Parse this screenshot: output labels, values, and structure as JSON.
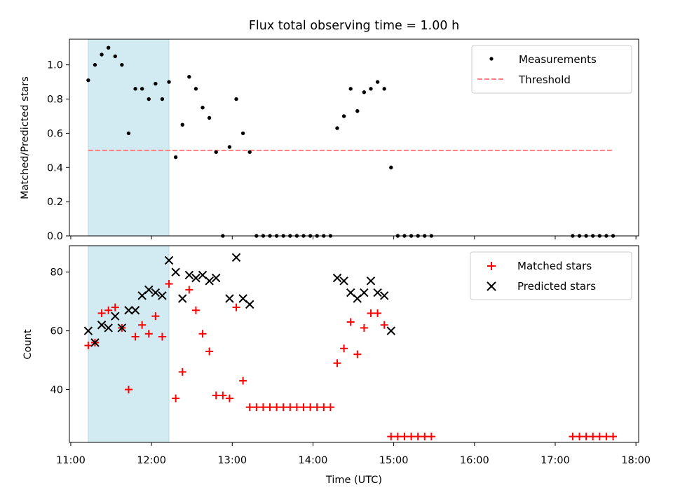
{
  "chart_data": [
    {
      "type": "scatter",
      "title": "Flux total observing time = 1.00 h",
      "xlabel": "",
      "ylabel": "Matched/Predicted stars",
      "ylim": [
        0,
        1.15
      ],
      "yticks": [
        "0.0",
        "0.2",
        "0.4",
        "0.6",
        "0.8",
        "1.0"
      ],
      "highlight_span": [
        "11:13",
        "12:13"
      ],
      "threshold": 0.5,
      "threshold_range": [
        "11:13",
        "17:43"
      ],
      "legend_position": "top-right",
      "series": [
        {
          "name": "Measurements",
          "color": "#000000",
          "marker": "dot",
          "points": [
            [
              "11:13",
              0.91
            ],
            [
              "11:18",
              1.0
            ],
            [
              "11:23",
              1.06
            ],
            [
              "11:28",
              1.1
            ],
            [
              "11:33",
              1.05
            ],
            [
              "11:38",
              1.0
            ],
            [
              "11:43",
              0.6
            ],
            [
              "11:48",
              0.86
            ],
            [
              "11:53",
              0.86
            ],
            [
              "11:58",
              0.8
            ],
            [
              "12:03",
              0.89
            ],
            [
              "12:08",
              0.8
            ],
            [
              "12:13",
              0.9
            ],
            [
              "12:18",
              0.46
            ],
            [
              "12:23",
              0.65
            ],
            [
              "12:28",
              0.93
            ],
            [
              "12:33",
              0.86
            ],
            [
              "12:38",
              0.75
            ],
            [
              "12:43",
              0.69
            ],
            [
              "12:48",
              0.49
            ],
            [
              "12:53",
              0.0
            ],
            [
              "12:58",
              0.52
            ],
            [
              "13:03",
              0.8
            ],
            [
              "13:08",
              0.6
            ],
            [
              "13:13",
              0.49
            ],
            [
              "13:18",
              0.0
            ],
            [
              "13:23",
              0.0
            ],
            [
              "13:28",
              0.0
            ],
            [
              "13:33",
              0.0
            ],
            [
              "13:38",
              0.0
            ],
            [
              "13:43",
              0.0
            ],
            [
              "13:48",
              0.0
            ],
            [
              "13:53",
              0.0
            ],
            [
              "13:58",
              0.0
            ],
            [
              "14:03",
              0.0
            ],
            [
              "14:08",
              0.0
            ],
            [
              "14:13",
              0.0
            ],
            [
              "14:18",
              0.63
            ],
            [
              "14:23",
              0.7
            ],
            [
              "14:28",
              0.86
            ],
            [
              "14:33",
              0.73
            ],
            [
              "14:38",
              0.84
            ],
            [
              "14:43",
              0.86
            ],
            [
              "14:48",
              0.9
            ],
            [
              "14:53",
              0.86
            ],
            [
              "14:58",
              0.4
            ],
            [
              "15:03",
              0.0
            ],
            [
              "15:08",
              0.0
            ],
            [
              "15:13",
              0.0
            ],
            [
              "15:18",
              0.0
            ],
            [
              "15:23",
              0.0
            ],
            [
              "15:28",
              0.0
            ],
            [
              "17:13",
              0.0
            ],
            [
              "17:18",
              0.0
            ],
            [
              "17:23",
              0.0
            ],
            [
              "17:28",
              0.0
            ],
            [
              "17:33",
              0.0
            ],
            [
              "17:38",
              0.0
            ],
            [
              "17:43",
              0.0
            ]
          ]
        },
        {
          "name": "Threshold",
          "color": "#ff7f7f",
          "style": "dashed"
        }
      ]
    },
    {
      "type": "scatter",
      "title": "",
      "xlabel": "Time (UTC)",
      "ylabel": "Count",
      "ylim": [
        22,
        89
      ],
      "yticks": [
        "40",
        "60",
        "80"
      ],
      "xticks": [
        "11:00",
        "12:00",
        "13:00",
        "14:00",
        "15:00",
        "16:00",
        "17:00",
        "18:00"
      ],
      "xlim": [
        "10:59",
        "18:02"
      ],
      "highlight_span": [
        "11:13",
        "12:13"
      ],
      "legend_position": "top-right",
      "series": [
        {
          "name": "Matched stars",
          "color": "#ff0000",
          "marker": "plus",
          "points": [
            [
              "11:13",
              55
            ],
            [
              "11:18",
              56
            ],
            [
              "11:23",
              66
            ],
            [
              "11:28",
              67
            ],
            [
              "11:33",
              68
            ],
            [
              "11:38",
              61
            ],
            [
              "11:43",
              40
            ],
            [
              "11:48",
              58
            ],
            [
              "11:53",
              62
            ],
            [
              "11:58",
              59
            ],
            [
              "12:03",
              65
            ],
            [
              "12:08",
              58
            ],
            [
              "12:13",
              76
            ],
            [
              "12:18",
              37
            ],
            [
              "12:23",
              46
            ],
            [
              "12:28",
              74
            ],
            [
              "12:33",
              67
            ],
            [
              "12:38",
              59
            ],
            [
              "12:43",
              53
            ],
            [
              "12:48",
              38
            ],
            [
              "12:53",
              38
            ],
            [
              "12:58",
              37
            ],
            [
              "13:03",
              68
            ],
            [
              "13:08",
              43
            ],
            [
              "13:13",
              34
            ],
            [
              "13:18",
              34
            ],
            [
              "13:23",
              34
            ],
            [
              "13:28",
              34
            ],
            [
              "13:33",
              34
            ],
            [
              "13:38",
              34
            ],
            [
              "13:43",
              34
            ],
            [
              "13:48",
              34
            ],
            [
              "13:53",
              34
            ],
            [
              "13:58",
              34
            ],
            [
              "14:03",
              34
            ],
            [
              "14:08",
              34
            ],
            [
              "14:13",
              34
            ],
            [
              "14:18",
              49
            ],
            [
              "14:23",
              54
            ],
            [
              "14:28",
              63
            ],
            [
              "14:33",
              52
            ],
            [
              "14:38",
              61
            ],
            [
              "14:43",
              66
            ],
            [
              "14:48",
              66
            ],
            [
              "14:53",
              62
            ],
            [
              "14:58",
              24
            ],
            [
              "15:03",
              24
            ],
            [
              "15:08",
              24
            ],
            [
              "15:13",
              24
            ],
            [
              "15:18",
              24
            ],
            [
              "15:23",
              24
            ],
            [
              "15:28",
              24
            ],
            [
              "17:13",
              24
            ],
            [
              "17:18",
              24
            ],
            [
              "17:23",
              24
            ],
            [
              "17:28",
              24
            ],
            [
              "17:33",
              24
            ],
            [
              "17:38",
              24
            ],
            [
              "17:43",
              24
            ]
          ]
        },
        {
          "name": "Predicted stars",
          "color": "#000000",
          "marker": "x",
          "points": [
            [
              "11:13",
              60
            ],
            [
              "11:18",
              56
            ],
            [
              "11:23",
              62
            ],
            [
              "11:28",
              61
            ],
            [
              "11:33",
              65
            ],
            [
              "11:38",
              61
            ],
            [
              "11:43",
              67
            ],
            [
              "11:48",
              67
            ],
            [
              "11:53",
              72
            ],
            [
              "11:58",
              74
            ],
            [
              "12:03",
              73
            ],
            [
              "12:08",
              72
            ],
            [
              "12:13",
              84
            ],
            [
              "12:18",
              80
            ],
            [
              "12:23",
              71
            ],
            [
              "12:28",
              79
            ],
            [
              "12:33",
              78
            ],
            [
              "12:38",
              79
            ],
            [
              "12:43",
              77
            ],
            [
              "12:48",
              78
            ],
            [
              "12:58",
              71
            ],
            [
              "13:03",
              85
            ],
            [
              "13:08",
              71
            ],
            [
              "13:13",
              69
            ],
            [
              "14:18",
              78
            ],
            [
              "14:23",
              77
            ],
            [
              "14:28",
              73
            ],
            [
              "14:33",
              71
            ],
            [
              "14:38",
              73
            ],
            [
              "14:43",
              77
            ],
            [
              "14:48",
              73
            ],
            [
              "14:53",
              72
            ],
            [
              "14:58",
              60
            ]
          ]
        }
      ]
    }
  ]
}
